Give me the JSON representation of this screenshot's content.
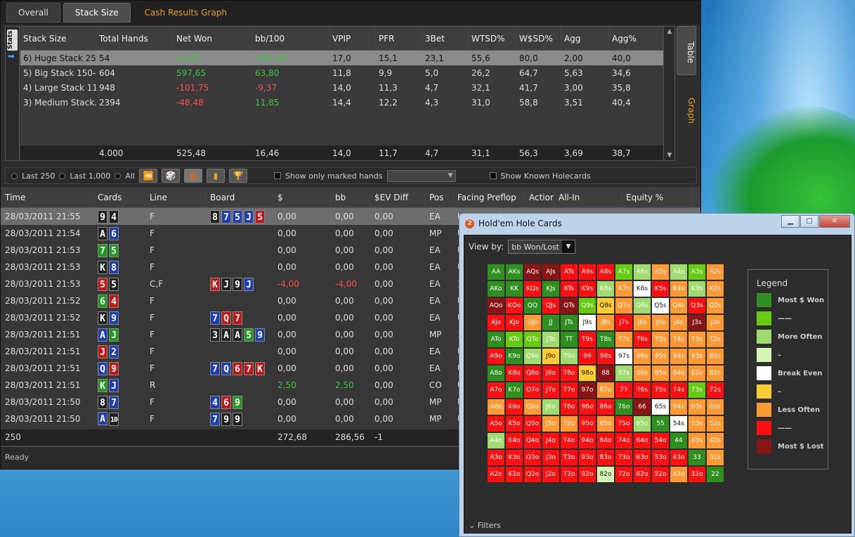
{
  "tabs": [
    "Overall",
    "Stack Size",
    "Cash Results Graph"
  ],
  "stats": {
    "side_label": "Stats",
    "columns": [
      "Stack Size",
      "Total Hands",
      "Net Won",
      "bb/100",
      "VPIP",
      "PFR",
      "3Bet",
      "WTSD%",
      "W$SD%",
      "Agg",
      "Agg%"
    ],
    "rows": [
      {
        "name": "6) Huge Stack 25...",
        "hands": "54",
        "net": "70,08",
        "bb": "+64,58",
        "vpip": "17,0",
        "pfr": "15,1",
        "threebet": "23,1",
        "wtsd": "55,6",
        "wsd": "80,0",
        "agg": "2,00",
        "aggp": "40,0"
      },
      {
        "name": "5) Big Stack 150-...",
        "hands": "604",
        "net": "597,65",
        "bb": "63,80",
        "vpip": "11,8",
        "pfr": "9,9",
        "threebet": "5,0",
        "wtsd": "26,2",
        "wsd": "64,7",
        "agg": "5,63",
        "aggp": "34,6"
      },
      {
        "name": "4) Large Stack 11...",
        "hands": "948",
        "net": "-101,75",
        "bb": "-9,37",
        "vpip": "14,0",
        "pfr": "11,3",
        "threebet": "4,7",
        "wtsd": "32,1",
        "wsd": "41,7",
        "agg": "3,00",
        "aggp": "35,8"
      },
      {
        "name": "3) Medium Stack...",
        "hands": "2394",
        "net": "-48,48",
        "bb": "11,85",
        "vpip": "14,4",
        "pfr": "12,2",
        "threebet": "4,3",
        "wtsd": "31,0",
        "wsd": "58,8",
        "agg": "3,51",
        "aggp": "40,4"
      }
    ],
    "total": {
      "hands": "4.000",
      "net": "525,48",
      "bb": "16,46",
      "vpip": "14,0",
      "pfr": "11,7",
      "threebet": "4,7",
      "wtsd": "31,1",
      "wsd": "56,3",
      "agg": "3,69",
      "aggp": "38,7"
    }
  },
  "side_tabs": {
    "table": "Table",
    "graph": "Graph"
  },
  "toolbar": {
    "last250": "Last 250",
    "last1000": "Last 1,000",
    "all": "All",
    "marked": "Show only marked hands",
    "known": "Show Known Holecards"
  },
  "hands": {
    "columns": [
      "Time",
      "Cards",
      "Line",
      "Board",
      "$",
      "bb",
      "$EV Diff",
      "Pos",
      "Facing Preflop",
      "Action",
      "All-In",
      "Equity %"
    ],
    "rows": [
      {
        "time": "28/03/2011 21:55",
        "cards": [
          [
            "9",
            "s"
          ],
          [
            "4",
            "s"
          ]
        ],
        "line": "F",
        "board": [
          [
            "8",
            "s"
          ],
          [
            "7",
            "d"
          ],
          [
            "5",
            "d"
          ],
          [
            "J",
            "d"
          ],
          [
            "5",
            "h"
          ]
        ],
        "usd": "0,00",
        "bb": "0,00",
        "ev": "0,00",
        "pos": "EA",
        "facing": "Unopened",
        "sel": true
      },
      {
        "time": "28/03/2011 21:54",
        "cards": [
          [
            "A",
            "s"
          ],
          [
            "6",
            "d"
          ]
        ],
        "line": "F",
        "board": [],
        "usd": "0,00",
        "bb": "0,00",
        "ev": "0,00",
        "pos": "MP",
        "facing": "U"
      },
      {
        "time": "28/03/2011 21:53",
        "cards": [
          [
            "7",
            "c"
          ],
          [
            "5",
            "c"
          ]
        ],
        "line": "F",
        "board": [],
        "usd": "0,00",
        "bb": "0,00",
        "ev": "0,00",
        "pos": "EA",
        "facing": "U"
      },
      {
        "time": "28/03/2011 21:53",
        "cards": [
          [
            "K",
            "s"
          ],
          [
            "8",
            "d"
          ]
        ],
        "line": "F",
        "board": [],
        "usd": "0,00",
        "bb": "0,00",
        "ev": "0,00",
        "pos": "EA",
        "facing": "U"
      },
      {
        "time": "28/03/2011 21:53",
        "cards": [
          [
            "5",
            "h"
          ],
          [
            "5",
            "s"
          ]
        ],
        "line": "C,F",
        "board": [
          [
            "K",
            "h"
          ],
          [
            "J",
            "s"
          ],
          [
            "9",
            "s"
          ],
          [
            "J",
            "d"
          ]
        ],
        "usd": "-4,00",
        "bb": "-4,00",
        "ev": "0,00",
        "pos": "EA",
        "facing": "1",
        "neg": true
      },
      {
        "time": "28/03/2011 21:52",
        "cards": [
          [
            "6",
            "c"
          ],
          [
            "4",
            "h"
          ]
        ],
        "line": "F",
        "board": [],
        "usd": "0,00",
        "bb": "0,00",
        "ev": "0,00",
        "pos": "EA",
        "facing": "U"
      },
      {
        "time": "28/03/2011 21:52",
        "cards": [
          [
            "K",
            "s"
          ],
          [
            "9",
            "d"
          ]
        ],
        "line": "F",
        "board": [
          [
            "7",
            "d"
          ],
          [
            "Q",
            "h"
          ],
          [
            "7",
            "h"
          ]
        ],
        "usd": "0,00",
        "bb": "0,00",
        "ev": "0,00",
        "pos": "EA",
        "facing": "U"
      },
      {
        "time": "28/03/2011 21:51",
        "cards": [
          [
            "A",
            "d"
          ],
          [
            "J",
            "c"
          ]
        ],
        "line": "F",
        "board": [
          [
            "3",
            "s"
          ],
          [
            "A",
            "s"
          ],
          [
            "A",
            "s"
          ],
          [
            "5",
            "c"
          ],
          [
            "9",
            "d"
          ]
        ],
        "usd": "0,00",
        "bb": "0,00",
        "ev": "0,00",
        "pos": "MP",
        "facing": "1"
      },
      {
        "time": "28/03/2011 21:51",
        "cards": [
          [
            "J",
            "h"
          ],
          [
            "2",
            "d"
          ]
        ],
        "line": "F",
        "board": [],
        "usd": "0,00",
        "bb": "0,00",
        "ev": "0,00",
        "pos": "EA",
        "facing": "U"
      },
      {
        "time": "28/03/2011 21:51",
        "cards": [
          [
            "Q",
            "d"
          ],
          [
            "9",
            "h"
          ]
        ],
        "line": "F",
        "board": [
          [
            "7",
            "d"
          ],
          [
            "Q",
            "d"
          ],
          [
            "6",
            "h"
          ],
          [
            "7",
            "h"
          ],
          [
            "K",
            "h"
          ]
        ],
        "usd": "0,00",
        "bb": "0,00",
        "ev": "0,00",
        "pos": "EA",
        "facing": "U"
      },
      {
        "time": "28/03/2011 21:51",
        "cards": [
          [
            "K",
            "c"
          ],
          [
            "J",
            "d"
          ]
        ],
        "line": "R",
        "board": [],
        "usd": "2,50",
        "bb": "2,50",
        "ev": "0,00",
        "pos": "CO",
        "facing": "U",
        "pos_val": true
      },
      {
        "time": "28/03/2011 21:50",
        "cards": [
          [
            "8",
            "s"
          ],
          [
            "7",
            "d"
          ]
        ],
        "line": "F",
        "board": [
          [
            "4",
            "d"
          ],
          [
            "6",
            "h"
          ],
          [
            "9",
            "c"
          ]
        ],
        "usd": "0,00",
        "bb": "0,00",
        "ev": "0,00",
        "pos": "MP",
        "facing": "U"
      },
      {
        "time": "28/03/2011 21:50",
        "cards": [
          [
            "A",
            "d"
          ],
          [
            "10",
            "s"
          ]
        ],
        "line": "F",
        "board": [
          [
            "7",
            "d"
          ],
          [
            "9",
            "s"
          ],
          [
            "9",
            "s"
          ]
        ],
        "usd": "0,00",
        "bb": "0,00",
        "ev": "0,00",
        "pos": "MP",
        "facing": "U"
      }
    ],
    "total": {
      "count": "250",
      "usd": "272,68",
      "bb": "286,56",
      "ev": "-1"
    }
  },
  "status": "Ready",
  "holecards": {
    "title": "Hold'em Hole Cards",
    "view_label": "View by:",
    "view_value": "bb Won/Lost",
    "filters": "Filters",
    "legend_title": "Legend",
    "legend": [
      {
        "label": "Most $ Won",
        "color": "#2f8f1f"
      },
      {
        "label": "——",
        "color": "#66cc11"
      },
      {
        "label": "More Often",
        "color": "#9fdb6e"
      },
      {
        "label": "–",
        "color": "#d5f5b3"
      },
      {
        "label": "Break Even",
        "color": "#ffffff"
      },
      {
        "label": "–",
        "color": "#ffcc33"
      },
      {
        "label": "Less Often",
        "color": "#ff9933"
      },
      {
        "label": "——",
        "color": "#ff1010"
      },
      {
        "label": "Most $ Lost",
        "color": "#8b1414"
      }
    ],
    "grid": [
      [
        "AA|G",
        "AKs|G",
        "AQs|D",
        "AJs|D",
        "ATs|R",
        "A9s|R",
        "A8s|R",
        "A7s|L",
        "A6s|M",
        "A5s|O",
        "A4s|M",
        "A3s|L",
        "A2s|O"
      ],
      [
        "AKo|G",
        "KK|G",
        "KQs|R",
        "KJs|G",
        "KTs|R",
        "K9s|R",
        "K8s|M",
        "K7s|O",
        "K6s|W",
        "K5s|R",
        "K4s|O",
        "K3s|M",
        "K2s|O"
      ],
      [
        "AQo|D",
        "KQo|R",
        "QQ|G",
        "QJs|R",
        "QTs|D",
        "Q9s|L",
        "Q8s|Y",
        "Q7s|O",
        "Q6s|M",
        "Q5s|W",
        "Q4s|O",
        "Q3s|R",
        "Q2s|O"
      ],
      [
        "AJo|R",
        "KJo|R",
        "QJo|O",
        "JJ|G",
        "JTs|G",
        "J9s|W",
        "J8s|O",
        "J7s|R",
        "J6s|O",
        "J5s|O",
        "J4s|O",
        "J3s|D",
        "J2s|O"
      ],
      [
        "ATo|G",
        "KTo|L",
        "QTo|L",
        "JTo|M",
        "TT|G",
        "T9s|R",
        "T8s|G",
        "T7s|O",
        "T6s|R",
        "T5s|O",
        "T4s|O",
        "T3s|O",
        "T2s|O"
      ],
      [
        "A9o|R",
        "K9o|G",
        "Q9o|M",
        "J9o|Y",
        "T9o|M",
        "99|R",
        "98s|R",
        "97s|W",
        "96s|O",
        "95s|O",
        "94s|O",
        "93s|O",
        "92s|O"
      ],
      [
        "A8o|G",
        "K8o|R",
        "Q8o|R",
        "J8o|R",
        "T8o|R",
        "98o|Y",
        "88|D",
        "87s|M",
        "86s|O",
        "85s|O",
        "84s|O",
        "83s|O",
        "82s|O"
      ],
      [
        "A7o|R",
        "K7o|G",
        "Q7o|R",
        "J7o|R",
        "T7o|R",
        "97o|D",
        "87o|O",
        "77|R",
        "76s|R",
        "75s|R",
        "74s|R",
        "73s|L",
        "72s|R"
      ],
      [
        "A6o|O",
        "K6o|R",
        "Q6o|O",
        "J6o|M",
        "T6o|R",
        "96o|R",
        "86o|R",
        "76o|G",
        "66|D",
        "65s|W",
        "64s|O",
        "63s|O",
        "62s|O"
      ],
      [
        "A5o|R",
        "K5o|R",
        "Q5o|R",
        "J5o|O",
        "T5o|O",
        "95o|R",
        "85o|O",
        "75o|R",
        "65o|M",
        "55|G",
        "54s|W",
        "53s|O",
        "52s|O"
      ],
      [
        "A4o|M",
        "K4o|R",
        "Q4o|R",
        "J4o|R",
        "T4o|R",
        "94o|R",
        "84o|R",
        "74o|R",
        "64o|R",
        "54o|R",
        "44|G",
        "43s|O",
        "42s|O"
      ],
      [
        "A3o|R",
        "K3o|R",
        "Q3o|R",
        "J3o|R",
        "T3o|R",
        "93o|R",
        "83o|R",
        "73o|R",
        "63o|R",
        "53o|R",
        "43o|R",
        "33|G",
        "32s|O"
      ],
      [
        "A2o|R",
        "K2o|R",
        "Q2o|R",
        "J2o|R",
        "T2o|R",
        "92o|R",
        "82o|P",
        "72o|R",
        "62o|R",
        "52o|R",
        "42o|O",
        "32o|R",
        "22|G"
      ]
    ]
  }
}
